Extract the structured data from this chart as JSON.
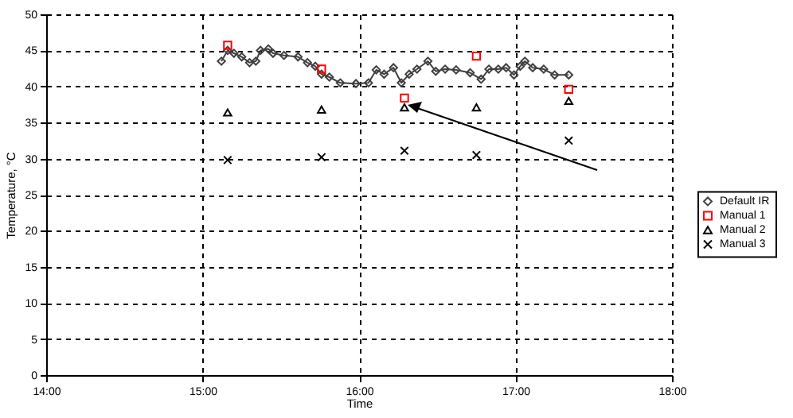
{
  "chart_data": {
    "type": "scatter",
    "xlabel": "Time",
    "ylabel": "Temperature, °C",
    "xlim": [
      14,
      18
    ],
    "xticks": [
      {
        "value": 14,
        "label": "14:00"
      },
      {
        "value": 15,
        "label": "15:00"
      },
      {
        "value": 16,
        "label": "16:00"
      },
      {
        "value": 17,
        "label": "17:00"
      },
      {
        "value": 18,
        "label": "18:00"
      }
    ],
    "ylim": [
      0,
      50
    ],
    "yticks": [
      0,
      5,
      10,
      15,
      20,
      25,
      30,
      35,
      40,
      45,
      50
    ],
    "grid": true,
    "legend": "right",
    "series": [
      {
        "name": "Default IR",
        "type": "line",
        "marker": "diamond",
        "color": "#404040",
        "x": [
          15.12,
          15.16,
          15.2,
          15.25,
          15.3,
          15.34,
          15.37,
          15.42,
          15.45,
          15.52,
          15.61,
          15.67,
          15.72,
          15.76,
          15.81,
          15.88,
          15.98,
          16.06,
          16.11,
          16.16,
          16.22,
          16.27,
          16.32,
          16.37,
          16.44,
          16.49,
          16.55,
          16.62,
          16.71,
          16.78,
          16.83,
          16.89,
          16.94,
          16.99,
          17.03,
          17.06,
          17.11,
          17.18,
          17.25,
          17.34
        ],
        "values": [
          43.5,
          45,
          44.6,
          44.1,
          43.3,
          43.5,
          45,
          45.2,
          44.6,
          44.3,
          44.1,
          43.3,
          42.8,
          41.7,
          41.3,
          40.5,
          40.4,
          40.5,
          42.3,
          41.7,
          42.6,
          40.5,
          41.7,
          42.4,
          43.5,
          42.1,
          42.4,
          42.3,
          41.9,
          41,
          42.4,
          42.4,
          42.6,
          41.6,
          42.8,
          43.5,
          42.6,
          42.4,
          41.6,
          41.6
        ]
      },
      {
        "name": "Manual 1",
        "marker": "square",
        "color": "#ff0000",
        "x": [
          15.16,
          15.76,
          16.29,
          16.75,
          17.34
        ],
        "values": [
          45.7,
          42.4,
          38.4,
          44.2,
          39.6
        ]
      },
      {
        "name": "Manual 2",
        "marker": "triangle",
        "color": "#000000",
        "x": [
          15.16,
          15.76,
          16.29,
          16.75,
          17.34
        ],
        "values": [
          36.4,
          36.8,
          37.1,
          37.1,
          38
        ]
      },
      {
        "name": "Manual 3",
        "marker": "cross",
        "color": "#000000",
        "x": [
          15.16,
          15.76,
          16.29,
          16.75,
          17.34
        ],
        "values": [
          29.8,
          30.2,
          31.1,
          30.5,
          32.5
        ]
      }
    ]
  }
}
